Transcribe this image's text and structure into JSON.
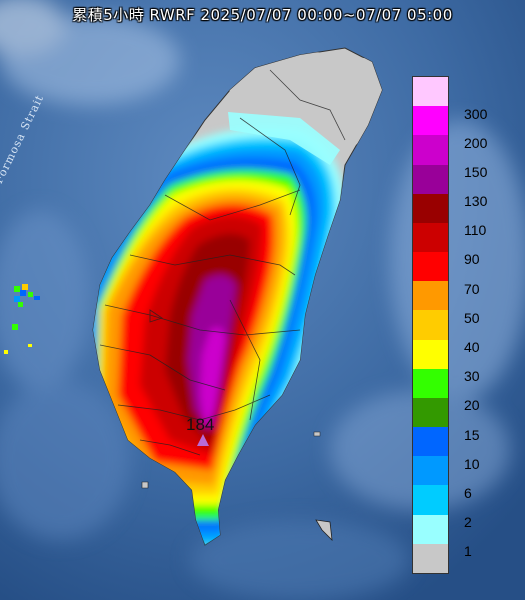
{
  "title": "累積5小時 RWRF 2025/07/07 00:00~07/07 05:00",
  "water_label": "Formosa Strait",
  "max_value": "184",
  "legend": [
    {
      "label": "300",
      "color": "#ffc8ff"
    },
    {
      "label": "200",
      "color": "#ff00ff"
    },
    {
      "label": "150",
      "color": "#cc00cc"
    },
    {
      "label": "130",
      "color": "#990099"
    },
    {
      "label": "110",
      "color": "#990000"
    },
    {
      "label": "90",
      "color": "#cc0000"
    },
    {
      "label": "70",
      "color": "#ff0000"
    },
    {
      "label": "50",
      "color": "#ff9900"
    },
    {
      "label": "40",
      "color": "#ffcc00"
    },
    {
      "label": "30",
      "color": "#ffff00"
    },
    {
      "label": "20",
      "color": "#33ff00"
    },
    {
      "label": "15",
      "color": "#339900"
    },
    {
      "label": "10",
      "color": "#0066ff"
    },
    {
      "label": "6",
      "color": "#0099ff"
    },
    {
      "label": "2",
      "color": "#00ccff"
    },
    {
      "label": "1",
      "color": "#99ffff"
    },
    {
      "label": "",
      "color": "#c8c8c8"
    }
  ]
}
